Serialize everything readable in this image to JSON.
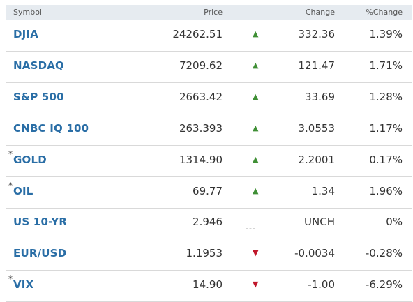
{
  "table": {
    "header": [
      "Symbol",
      "Price",
      "Change",
      "%Change"
    ],
    "rows": [
      {
        "symbol": "DJIA",
        "price": "24262.51",
        "indicator": "▲",
        "change": "332.36",
        "pct": "1.39%"
      },
      {
        "symbol": "NASDAQ",
        "price": "7209.62",
        "indicator": "▲",
        "change": "121.47",
        "pct": "1.71%"
      },
      {
        "symbol": "S&P 500",
        "price": "2663.42",
        "indicator": "▲",
        "change": "33.69",
        "pct": "1.28%"
      },
      {
        "symbol": "CNBC IQ 100",
        "price": "263.393",
        "indicator": "▲",
        "change": "3.0553",
        "pct": "1.17%"
      },
      {
        "mark": "*",
        "symbol": "GOLD",
        "price": "1314.90",
        "indicator": "▲",
        "change": "2.2001",
        "pct": "0.17%"
      },
      {
        "mark": "*",
        "symbol": "OIL",
        "price": "69.77",
        "indicator": "▲",
        "change": "1.34",
        "pct": "1.96%"
      },
      {
        "symbol": "US 10-YR",
        "price": "2.946",
        "indicator": "---",
        "change": "UNCH",
        "pct": "0%"
      },
      {
        "symbol": "EUR/USD",
        "price": "1.1953",
        "indicator": "▼",
        "change": "-0.0034",
        "pct": "-0.28%"
      },
      {
        "mark": "*",
        "symbol": "VIX",
        "price": "14.90",
        "indicator": "▼",
        "change": "-1.00",
        "pct": "-6.29%"
      }
    ]
  }
}
